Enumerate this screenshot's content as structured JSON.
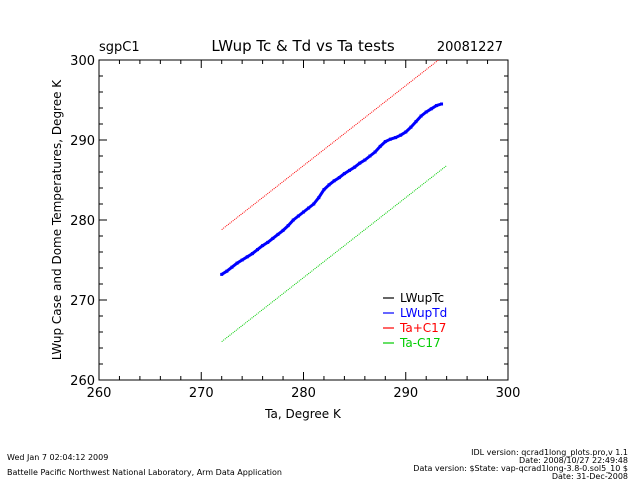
{
  "chart_data": {
    "type": "line",
    "site": "sgpC1",
    "title": "LWup Tc & Td vs Ta tests",
    "date": "20081227",
    "xlabel": "Ta, Degree K",
    "ylabel": "LWup Case and Dome Temperatures, Degree K",
    "xlim": [
      260,
      300
    ],
    "ylim": [
      260,
      300
    ],
    "xticks": [
      "260",
      "270",
      "280",
      "290",
      "300"
    ],
    "yticks": [
      "260",
      "270",
      "280",
      "290",
      "300"
    ],
    "legend_position": "bottom-right",
    "series": [
      {
        "name": "LWupTc",
        "color": "#000000",
        "points": []
      },
      {
        "name": "LWupTd",
        "color": "#0000ff",
        "points": [
          [
            272.0,
            273.2
          ],
          [
            272.5,
            273.6
          ],
          [
            273.0,
            274.1
          ],
          [
            273.5,
            274.6
          ],
          [
            274.0,
            275.0
          ],
          [
            274.5,
            275.4
          ],
          [
            275.0,
            275.8
          ],
          [
            275.5,
            276.3
          ],
          [
            276.0,
            276.8
          ],
          [
            276.5,
            277.2
          ],
          [
            277.0,
            277.7
          ],
          [
            277.5,
            278.2
          ],
          [
            278.0,
            278.7
          ],
          [
            278.5,
            279.3
          ],
          [
            279.0,
            280.0
          ],
          [
            279.5,
            280.5
          ],
          [
            280.0,
            281.0
          ],
          [
            280.5,
            281.5
          ],
          [
            281.0,
            282.0
          ],
          [
            281.5,
            282.8
          ],
          [
            282.0,
            283.8
          ],
          [
            282.5,
            284.4
          ],
          [
            283.0,
            284.9
          ],
          [
            283.5,
            285.3
          ],
          [
            284.0,
            285.8
          ],
          [
            284.5,
            286.2
          ],
          [
            285.0,
            286.6
          ],
          [
            285.5,
            287.1
          ],
          [
            286.0,
            287.5
          ],
          [
            286.5,
            288.0
          ],
          [
            287.0,
            288.5
          ],
          [
            287.5,
            289.2
          ],
          [
            288.0,
            289.8
          ],
          [
            288.5,
            290.1
          ],
          [
            289.0,
            290.3
          ],
          [
            289.5,
            290.6
          ],
          [
            290.0,
            291.0
          ],
          [
            290.5,
            291.6
          ],
          [
            291.0,
            292.3
          ],
          [
            291.5,
            293.0
          ],
          [
            292.0,
            293.5
          ],
          [
            292.5,
            293.9
          ],
          [
            293.0,
            294.3
          ],
          [
            293.5,
            294.5
          ]
        ]
      },
      {
        "name": "Ta+C17",
        "color": "#ff0000",
        "points": [
          [
            272.0,
            278.8
          ],
          [
            294.0,
            300.8
          ]
        ]
      },
      {
        "name": "Ta-C17",
        "color": "#00ff00",
        "points": [
          [
            272.0,
            264.8
          ],
          [
            294.0,
            286.8
          ]
        ]
      }
    ]
  },
  "footer": {
    "timestamp": "Wed Jan  7 02:04:12 2009",
    "lab": "Battelle Pacific Northwest National Laboratory, Arm Data Application",
    "idl_version": "IDL version: qcrad1long_plots.pro,v 1.1",
    "idl_date": "Date: 2008/10/27 22:49:48",
    "data_version": "Data version: $State: vap-qcrad1long-3.8-0.sol5_10 $",
    "data_date": "Date: 31-Dec-2008"
  }
}
